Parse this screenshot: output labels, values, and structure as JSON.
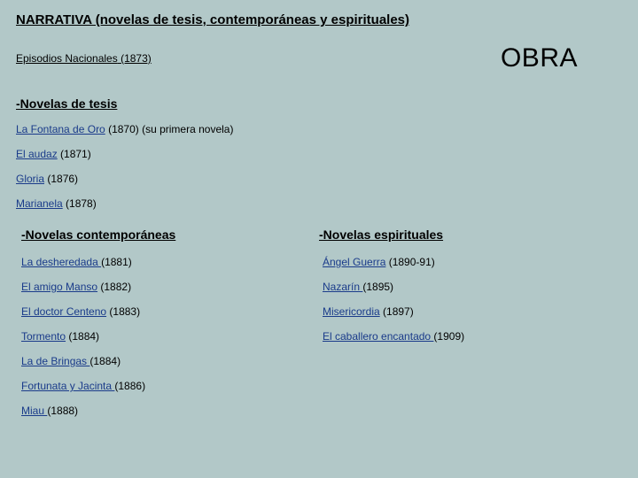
{
  "heading": "NARRATIVA (novelas de tesis, contemporáneas y espirituales)",
  "episodios": {
    "title": "Episodios Nacionales",
    "year": "(1873)"
  },
  "obra": "OBRA",
  "tesis": {
    "heading": "-Novelas de tesis",
    "items": [
      {
        "title": "La Fontana de Oro",
        "suffix": " (1870) (su primera novela)"
      },
      {
        "title": "El audaz",
        "suffix": " (1871)"
      },
      {
        "title": "Gloria",
        "suffix": " (1876)"
      },
      {
        "title": "Marianela",
        "suffix": " (1878)"
      }
    ]
  },
  "contemp": {
    "heading": "-Novelas contemporáneas",
    "items": [
      {
        "title": "La desheredada ",
        "suffix": "(1881)"
      },
      {
        "title": "El amigo Manso",
        "suffix": " (1882)"
      },
      {
        "title": "El doctor Centeno",
        "suffix": " (1883)"
      },
      {
        "title": "Tormento",
        "suffix": " (1884)"
      },
      {
        "title": "La de Bringas ",
        "suffix": "(1884)"
      },
      {
        "title": "Fortunata y Jacinta ",
        "suffix": "(1886)"
      },
      {
        "title": "Miau ",
        "suffix": "(1888)"
      }
    ]
  },
  "espir": {
    "heading": "-Novelas espirituales",
    "items": [
      {
        "title": "Ángel Guerra",
        "suffix": " (1890-91)"
      },
      {
        "title": "Nazarín ",
        "suffix": "(1895)"
      },
      {
        "title": "Misericordia",
        "suffix": " (1897)"
      },
      {
        "title": "El caballero encantado ",
        "suffix": "(1909)"
      }
    ]
  }
}
